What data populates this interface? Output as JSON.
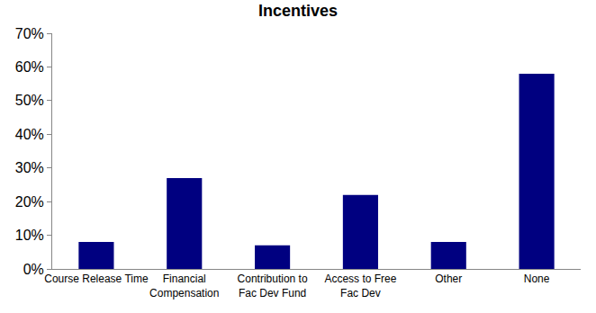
{
  "chart_data": {
    "type": "bar",
    "title": "Incentives",
    "categories": [
      "Course Release Time",
      "Financial\nCompensation",
      "Contribution to\nFac Dev Fund",
      "Access to Free\nFac Dev",
      "Other",
      "None"
    ],
    "values": [
      8,
      27,
      7,
      22,
      8,
      58
    ],
    "color": "#000080",
    "ylim": [
      0,
      70
    ],
    "yticks": [
      {
        "value": 0,
        "label": "0%"
      },
      {
        "value": 10,
        "label": "10%"
      },
      {
        "value": 20,
        "label": "20%"
      },
      {
        "value": 30,
        "label": "30%"
      },
      {
        "value": 40,
        "label": "40%"
      },
      {
        "value": 50,
        "label": "50%"
      },
      {
        "value": 60,
        "label": "60%"
      },
      {
        "value": 70,
        "label": "70%"
      }
    ],
    "grid": false
  }
}
